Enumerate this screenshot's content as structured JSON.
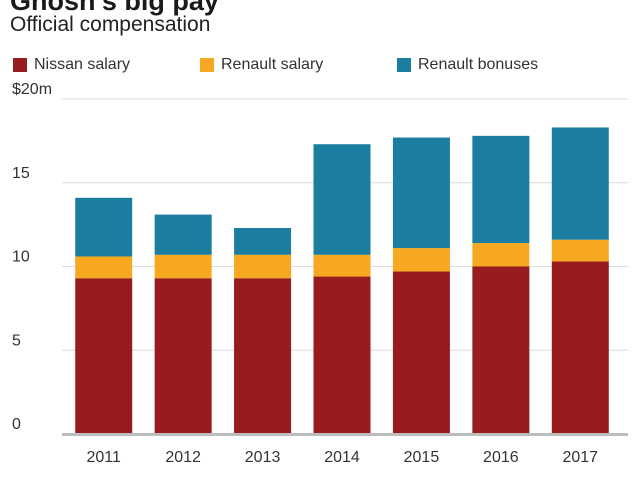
{
  "chart_data": {
    "type": "bar",
    "stacked": true,
    "title": "Ghosn's big pay",
    "subtitle": "Official compensation",
    "categories": [
      "2011",
      "2012",
      "2013",
      "2014",
      "2015",
      "2016",
      "2017"
    ],
    "series": [
      {
        "name": "Nissan salary",
        "color": "#981b1e",
        "values": [
          9.3,
          9.3,
          9.3,
          9.4,
          9.7,
          10.0,
          10.3
        ]
      },
      {
        "name": "Renault salary",
        "color": "#f6a821",
        "values": [
          1.3,
          1.4,
          1.4,
          1.3,
          1.4,
          1.4,
          1.3
        ]
      },
      {
        "name": "Renault bonuses",
        "color": "#1b7ea1",
        "values": [
          3.5,
          2.4,
          1.6,
          6.6,
          6.6,
          6.4,
          6.7
        ]
      }
    ],
    "y_ticks": [
      {
        "value": 0,
        "label": "0"
      },
      {
        "value": 5,
        "label": "5"
      },
      {
        "value": 10,
        "label": "10"
      },
      {
        "value": 15,
        "label": "15"
      },
      {
        "value": 20,
        "label": "$20m"
      }
    ],
    "ylim": [
      0,
      20
    ],
    "grid": true,
    "legend_position": "top"
  }
}
